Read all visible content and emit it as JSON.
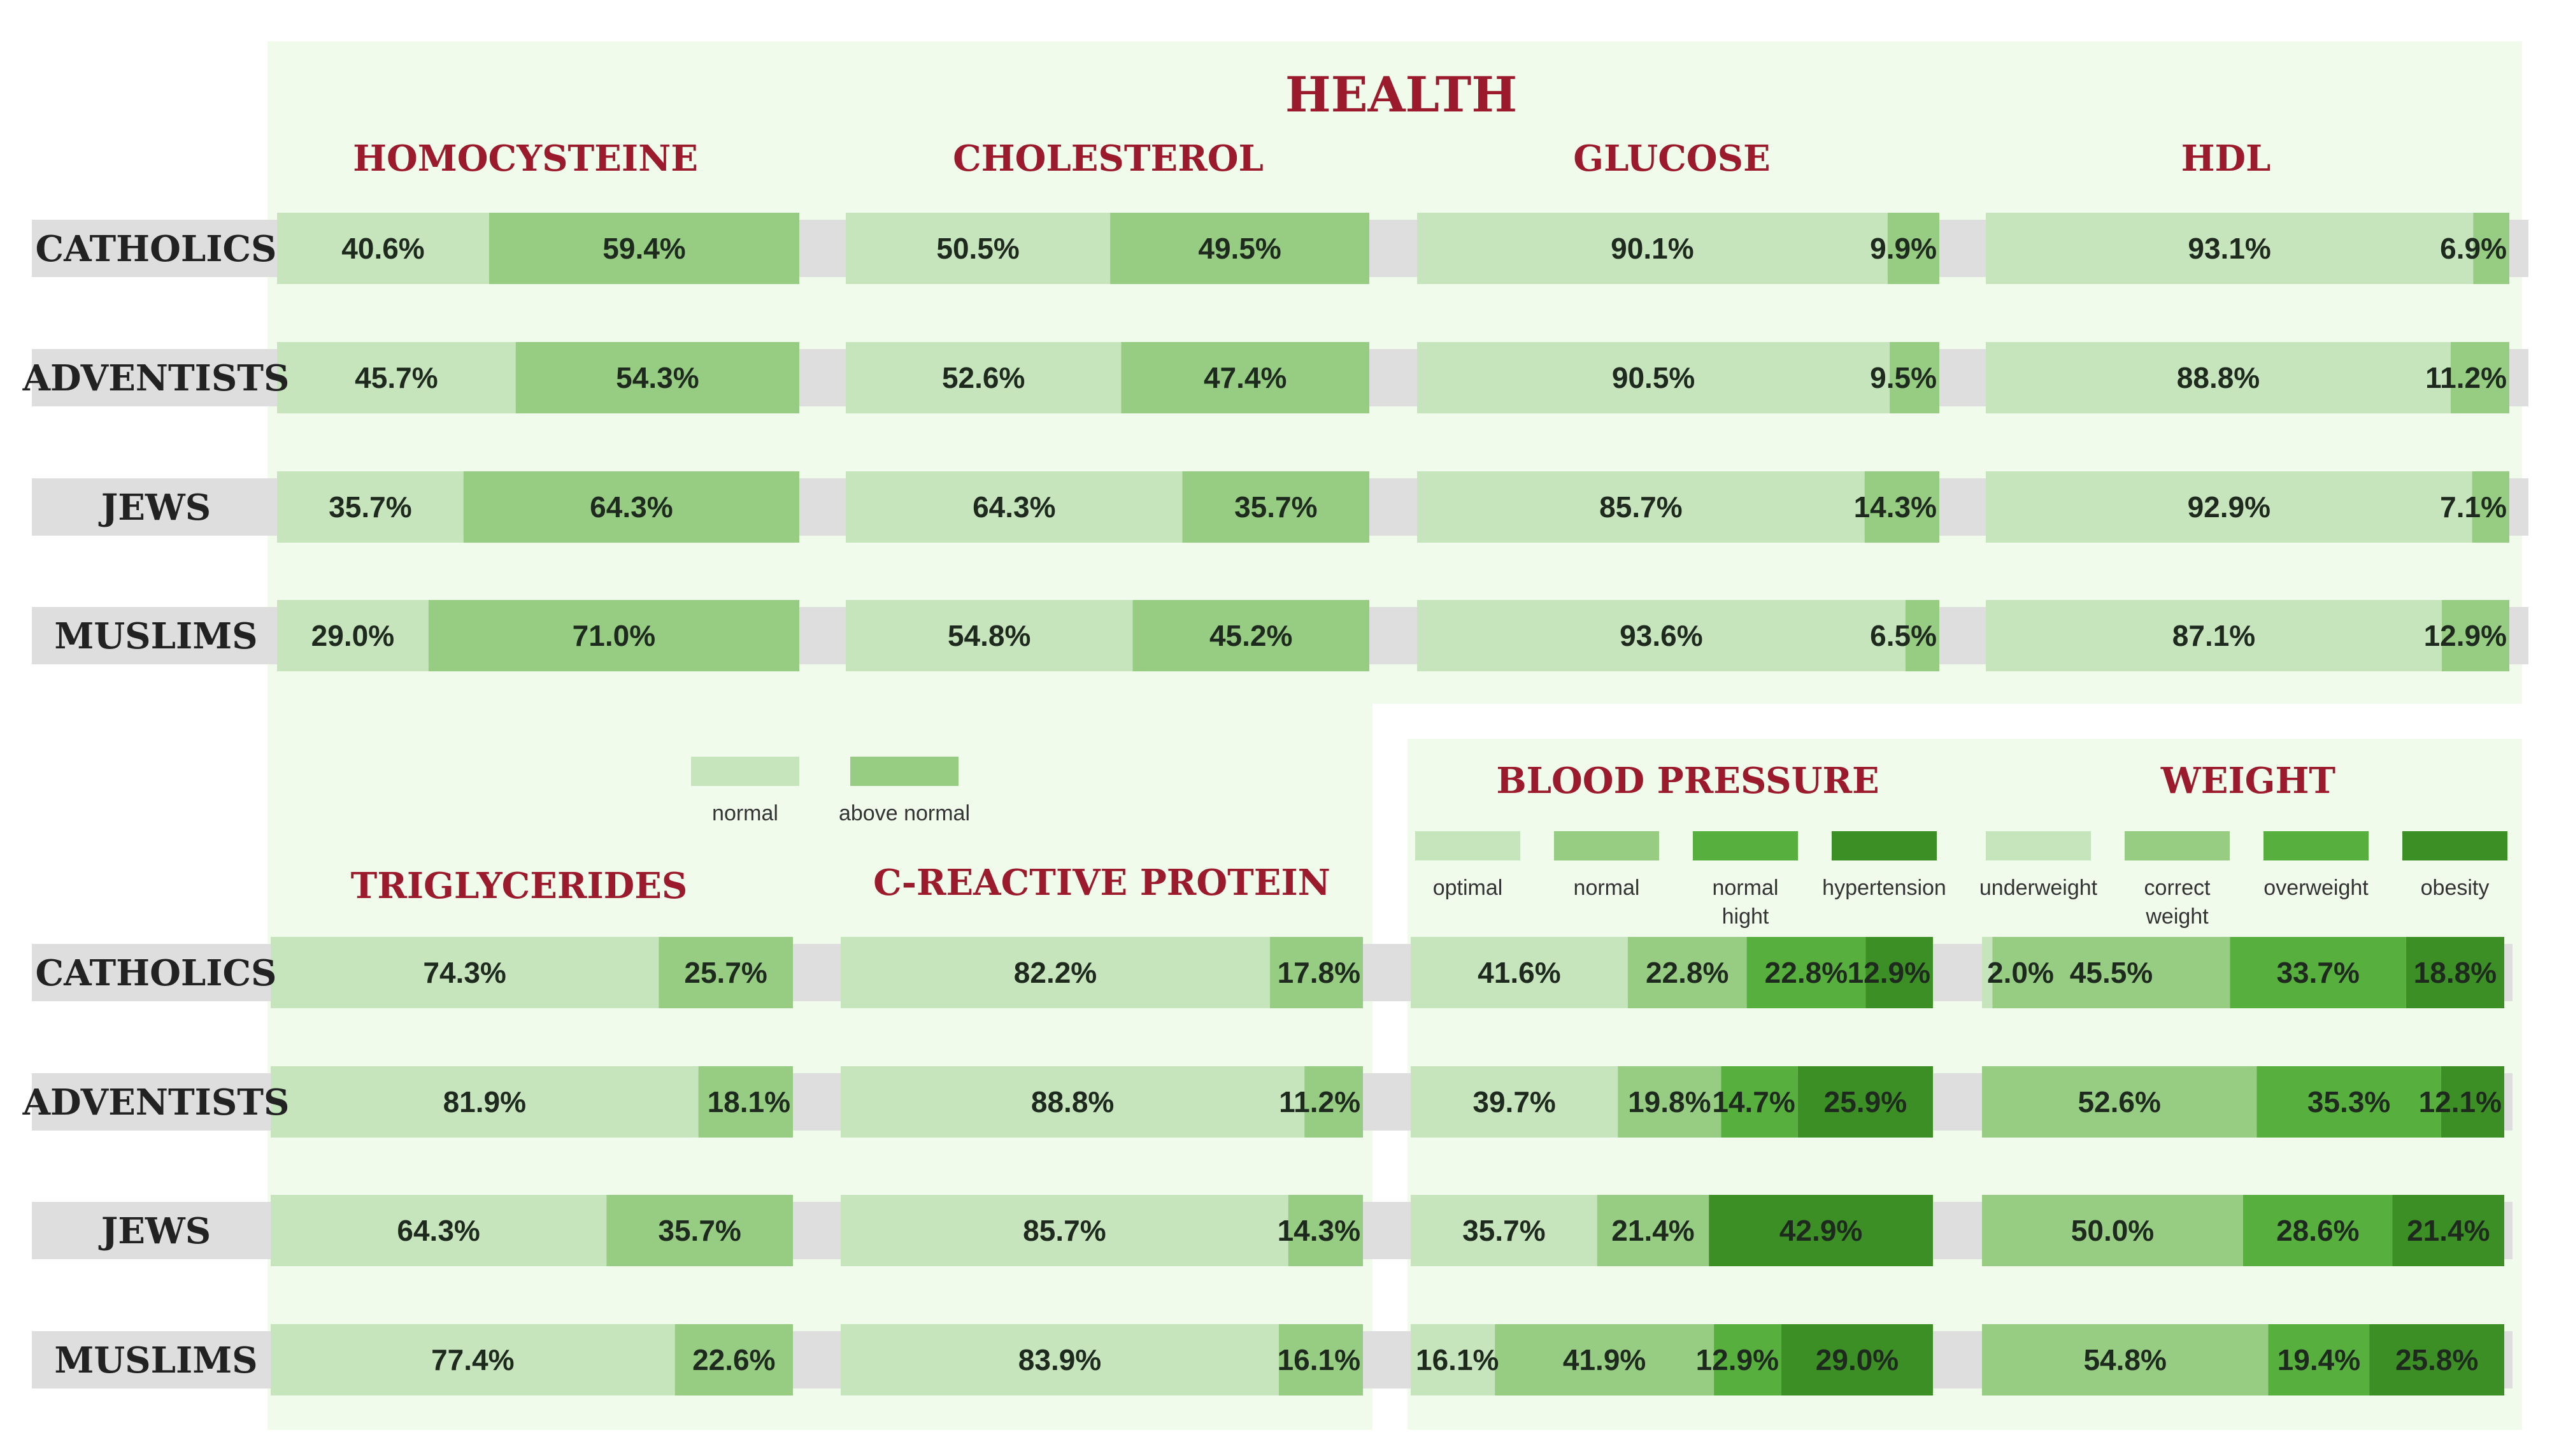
{
  "chart_data": {
    "type": "bar",
    "title": "HEALTH",
    "groups": [
      "CATHOLICS",
      "ADVENTISTS",
      "JEWS",
      "MUSLIMS"
    ],
    "colors": {
      "c1": "#c7e5bd",
      "c2": "#96cd83",
      "c3": "#57b03e",
      "c4": "#3b8f24",
      "title": "#9b1b2c",
      "panel": "#f0fbeb",
      "label_bg": "#dedede"
    },
    "legends": {
      "binary": [
        "normal",
        "above normal"
      ],
      "blood_pressure": [
        "optimal",
        "normal",
        "normal hight",
        "hypertension"
      ],
      "weight": [
        "underweight",
        "correct weight",
        "overweight",
        "obesity"
      ]
    },
    "sections": [
      {
        "name": "HOMOCYSTEINE",
        "categories": [
          "normal",
          "above normal"
        ],
        "values": [
          [
            40.6,
            59.4
          ],
          [
            45.7,
            54.3
          ],
          [
            35.7,
            64.3
          ],
          [
            29.0,
            71.0
          ]
        ],
        "labels": [
          [
            "40.6%",
            "59.4%"
          ],
          [
            "45.7%",
            "54.3%"
          ],
          [
            "35.7%",
            "64.3%"
          ],
          [
            "29.0%",
            "71.0%"
          ]
        ]
      },
      {
        "name": "CHOLESTEROL",
        "categories": [
          "normal",
          "above normal"
        ],
        "values": [
          [
            50.5,
            49.5
          ],
          [
            52.6,
            47.4
          ],
          [
            64.3,
            35.7
          ],
          [
            54.8,
            45.2
          ]
        ],
        "labels": [
          [
            "50.5%",
            "49.5%"
          ],
          [
            "52.6%",
            "47.4%"
          ],
          [
            "64.3%",
            "35.7%"
          ],
          [
            "54.8%",
            "45.2%"
          ]
        ]
      },
      {
        "name": "GLUCOSE",
        "categories": [
          "normal",
          "above normal"
        ],
        "values": [
          [
            90.1,
            9.9
          ],
          [
            90.5,
            9.5
          ],
          [
            85.7,
            14.3
          ],
          [
            93.6,
            6.5
          ]
        ],
        "labels": [
          [
            "90.1%",
            "9.9%"
          ],
          [
            "90.5%",
            "9.5%"
          ],
          [
            "85.7%",
            "14.3%"
          ],
          [
            "93.6%",
            "6.5%"
          ]
        ]
      },
      {
        "name": "HDL",
        "categories": [
          "normal",
          "above normal"
        ],
        "values": [
          [
            93.1,
            6.9
          ],
          [
            88.8,
            11.2
          ],
          [
            92.9,
            7.1
          ],
          [
            87.1,
            12.9
          ]
        ],
        "labels": [
          [
            "93.1%",
            "6.9%"
          ],
          [
            "88.8%",
            "11.2%"
          ],
          [
            "92.9%",
            "7.1%"
          ],
          [
            "87.1%",
            "12.9%"
          ]
        ]
      },
      {
        "name": "TRIGLYCERIDES",
        "categories": [
          "normal",
          "above normal"
        ],
        "values": [
          [
            74.3,
            25.7
          ],
          [
            81.9,
            18.1
          ],
          [
            64.3,
            35.7
          ],
          [
            77.4,
            22.6
          ]
        ],
        "labels": [
          [
            "74.3%",
            "25.7%"
          ],
          [
            "81.9%",
            "18.1%"
          ],
          [
            "64.3%",
            "35.7%"
          ],
          [
            "77.4%",
            "22.6%"
          ]
        ]
      },
      {
        "name": "C-REACTIVE PROTEIN",
        "categories": [
          "normal",
          "above normal"
        ],
        "values": [
          [
            82.2,
            17.8
          ],
          [
            88.8,
            11.2
          ],
          [
            85.7,
            14.3
          ],
          [
            83.9,
            16.1
          ]
        ],
        "labels": [
          [
            "82.2%",
            "17.8%"
          ],
          [
            "88.8%",
            "11.2%"
          ],
          [
            "85.7%",
            "14.3%"
          ],
          [
            "83.9%",
            "16.1%"
          ]
        ]
      },
      {
        "name": "BLOOD PRESSURE",
        "categories": [
          "optimal",
          "normal",
          "normal hight",
          "hypertension"
        ],
        "values": [
          [
            41.6,
            22.8,
            22.8,
            12.9
          ],
          [
            39.7,
            19.8,
            14.7,
            25.9
          ],
          [
            35.7,
            21.4,
            0,
            42.9
          ],
          [
            16.1,
            41.9,
            12.9,
            29.0
          ]
        ],
        "labels": [
          [
            "41.6%",
            "22.8%",
            "22.8%",
            "12.9%"
          ],
          [
            "39.7%",
            "19.8%",
            "14.7%",
            "25.9%"
          ],
          [
            "35.7%",
            "21.4%",
            "",
            "42.9%"
          ],
          [
            "16.1%",
            "41.9%",
            "12.9%",
            "29.0%"
          ]
        ]
      },
      {
        "name": "WEIGHT",
        "categories": [
          "underweight",
          "correct weight",
          "overweight",
          "obesity"
        ],
        "values": [
          [
            2.0,
            45.5,
            33.7,
            18.8
          ],
          [
            0,
            52.6,
            35.3,
            12.1
          ],
          [
            0,
            50.0,
            28.6,
            21.4
          ],
          [
            0,
            54.8,
            19.4,
            25.8
          ]
        ],
        "labels": [
          [
            "2.0%",
            "45.5%",
            "33.7%",
            "18.8%"
          ],
          [
            "",
            "52.6%",
            "35.3%",
            "12.1%"
          ],
          [
            "",
            "50.0%",
            "28.6%",
            "21.4%"
          ],
          [
            "",
            "54.8%",
            "19.4%",
            "25.8%"
          ]
        ]
      }
    ]
  }
}
